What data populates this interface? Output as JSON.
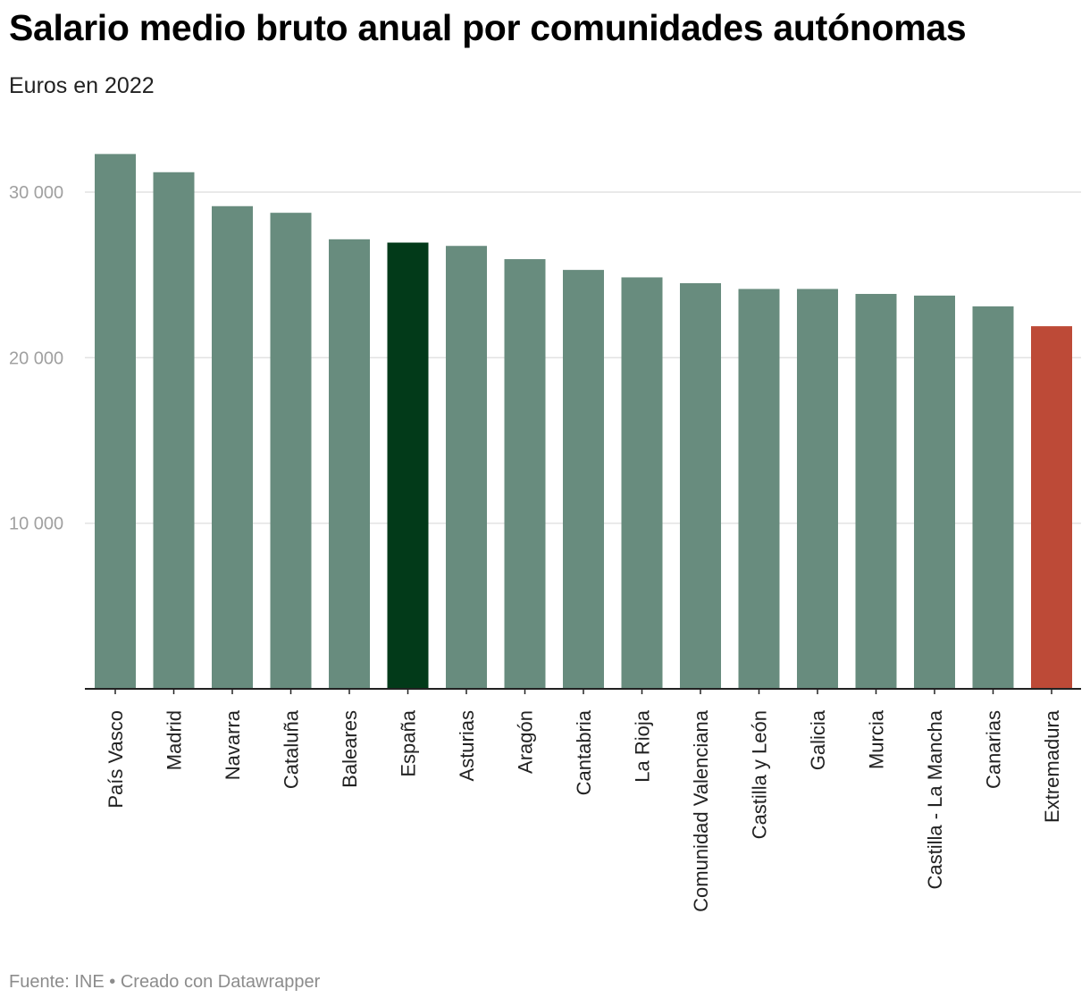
{
  "chart_data": {
    "type": "bar",
    "title": "Salario medio bruto anual por comunidades autónomas",
    "subtitle": "Euros en 2022",
    "xlabel": "",
    "ylabel": "",
    "ylim": [
      0,
      32500
    ],
    "yticks": [
      10000,
      20000,
      30000
    ],
    "ytick_labels": [
      "10 000",
      "20 000",
      "30 000"
    ],
    "grid": true,
    "categories": [
      "País Vasco",
      "Madrid",
      "Navarra",
      "Cataluña",
      "Baleares",
      "España",
      "Asturias",
      "Aragón",
      "Cantabria",
      "La Rioja",
      "Comunidad Valenciana",
      "Castilla y León",
      "Galicia",
      "Murcia",
      "Castilla - La Mancha",
      "Canarias",
      "Extremadura"
    ],
    "values": [
      32300,
      31200,
      29150,
      28750,
      27150,
      26950,
      26750,
      25950,
      25300,
      24850,
      24500,
      24150,
      24150,
      23850,
      23750,
      23100,
      21900
    ],
    "colors": {
      "default": "#688c7e",
      "highlight": "#023a19",
      "lowest": "#bd4a37",
      "grid": "#e2e2e2",
      "axis": "#222222"
    },
    "bar_color_keys": [
      "default",
      "default",
      "default",
      "default",
      "default",
      "highlight",
      "default",
      "default",
      "default",
      "default",
      "default",
      "default",
      "default",
      "default",
      "default",
      "default",
      "lowest"
    ],
    "footer": "Fuente: INE • Creado con Datawrapper"
  }
}
